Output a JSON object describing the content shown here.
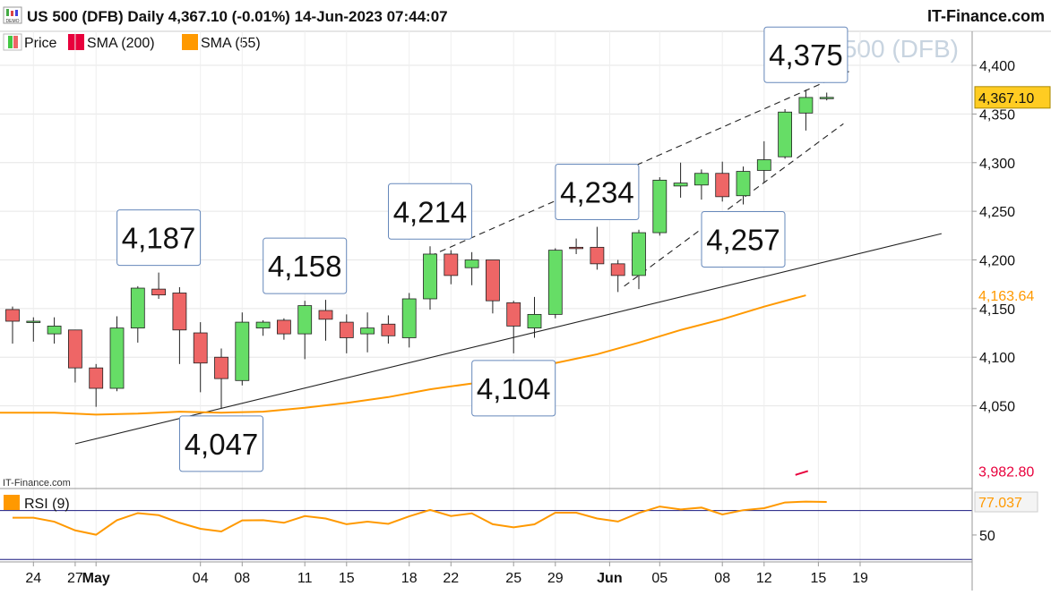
{
  "header": {
    "title": "US 500 (DFB) Daily 4,367.10 (-0.01%) 14-Jun-2023 07:44:07",
    "brand": "IT-Finance.com",
    "watermark": "US 500 (DFB)",
    "source_label": "IT-Finance.com"
  },
  "legend": [
    {
      "label": "Price",
      "color": "#44c844"
    },
    {
      "label": "SMA (200)",
      "color": "#e8003c"
    },
    {
      "label": "SMA (55)",
      "color": "#ff9900"
    }
  ],
  "rsi_legend": {
    "label": "RSI (9)",
    "color": "#ff9900"
  },
  "colors": {
    "up": "#66dd66",
    "down": "#ee6666",
    "sma55": "#ff9900",
    "sma200": "#e8003c",
    "rsi": "#ff9900",
    "rsi_band": "#1a1a80"
  },
  "chart_data": [
    {
      "type": "candlestick",
      "title": "US 500 (DFB) Daily",
      "ylim": [
        3965,
        4435
      ],
      "y_ticks": [
        4050,
        4100,
        4150,
        4200,
        4250,
        4300,
        4350,
        4400
      ],
      "y_tick_labels": [
        "4,050",
        "4,100",
        "4,150",
        "4,200",
        "4,250",
        "4,300",
        "4,350",
        "4,400"
      ],
      "x_axis_labels": [
        {
          "index": 1,
          "label": "24"
        },
        {
          "index": 3,
          "label": "27"
        },
        {
          "index": 4,
          "label": "May",
          "bold": true
        },
        {
          "index": 9,
          "label": "04"
        },
        {
          "index": 11,
          "label": "08"
        },
        {
          "index": 14,
          "label": "11"
        },
        {
          "index": 16,
          "label": "15"
        },
        {
          "index": 19,
          "label": "18"
        },
        {
          "index": 21,
          "label": "22"
        },
        {
          "index": 24,
          "label": "25"
        },
        {
          "index": 26,
          "label": "29"
        },
        {
          "index": 28.6,
          "label": "Jun",
          "bold": true
        },
        {
          "index": 31,
          "label": "05"
        },
        {
          "index": 34,
          "label": "08"
        },
        {
          "index": 36,
          "label": "12"
        },
        {
          "index": 38.6,
          "label": "15"
        },
        {
          "index": 40.6,
          "label": "19"
        }
      ],
      "candles": [
        {
          "o": 4149,
          "h": 4152,
          "l": 4114,
          "c": 4137
        },
        {
          "o": 4137,
          "h": 4141,
          "l": 4116,
          "c": 4137
        },
        {
          "o": 4124,
          "h": 4141,
          "l": 4114,
          "c": 4132
        },
        {
          "o": 4128,
          "h": 4128,
          "l": 4074,
          "c": 4089
        },
        {
          "o": 4089,
          "h": 4093,
          "l": 4049,
          "c": 4068
        },
        {
          "o": 4068,
          "h": 4142,
          "l": 4065,
          "c": 4130
        },
        {
          "o": 4130,
          "h": 4173,
          "l": 4115,
          "c": 4171
        },
        {
          "o": 4170,
          "h": 4187,
          "l": 4160,
          "c": 4164
        },
        {
          "o": 4166,
          "h": 4172,
          "l": 4093,
          "c": 4128
        },
        {
          "o": 4125,
          "h": 4136,
          "l": 4064,
          "c": 4094
        },
        {
          "o": 4100,
          "h": 4109,
          "l": 4047,
          "c": 4078
        },
        {
          "o": 4076,
          "h": 4146,
          "l": 4071,
          "c": 4136
        },
        {
          "o": 4130,
          "h": 4138,
          "l": 4122,
          "c": 4136
        },
        {
          "o": 4138,
          "h": 4140,
          "l": 4118,
          "c": 4124
        },
        {
          "o": 4124,
          "h": 4158,
          "l": 4098,
          "c": 4153
        },
        {
          "o": 4148,
          "h": 4159,
          "l": 4117,
          "c": 4139
        },
        {
          "o": 4136,
          "h": 4144,
          "l": 4104,
          "c": 4120
        },
        {
          "o": 4124,
          "h": 4146,
          "l": 4105,
          "c": 4130
        },
        {
          "o": 4134,
          "h": 4143,
          "l": 4114,
          "c": 4122
        },
        {
          "o": 4120,
          "h": 4166,
          "l": 4110,
          "c": 4160
        },
        {
          "o": 4160,
          "h": 4214,
          "l": 4149,
          "c": 4206
        },
        {
          "o": 4206,
          "h": 4210,
          "l": 4175,
          "c": 4184
        },
        {
          "o": 4192,
          "h": 4208,
          "l": 4174,
          "c": 4200
        },
        {
          "o": 4200,
          "h": 4200,
          "l": 4145,
          "c": 4158
        },
        {
          "o": 4156,
          "h": 4158,
          "l": 4104,
          "c": 4132
        },
        {
          "o": 4130,
          "h": 4162,
          "l": 4120,
          "c": 4144
        },
        {
          "o": 4144,
          "h": 4212,
          "l": 4140,
          "c": 4210
        },
        {
          "o": 4213,
          "h": 4222,
          "l": 4206,
          "c": 4212
        },
        {
          "o": 4213,
          "h": 4234,
          "l": 4190,
          "c": 4196
        },
        {
          "o": 4196,
          "h": 4200,
          "l": 4167,
          "c": 4184
        },
        {
          "o": 4184,
          "h": 4231,
          "l": 4170,
          "c": 4228
        },
        {
          "o": 4228,
          "h": 4285,
          "l": 4225,
          "c": 4282
        },
        {
          "o": 4276,
          "h": 4300,
          "l": 4264,
          "c": 4279
        },
        {
          "o": 4277,
          "h": 4293,
          "l": 4262,
          "c": 4289
        },
        {
          "o": 4289,
          "h": 4301,
          "l": 4260,
          "c": 4265
        },
        {
          "o": 4266,
          "h": 4296,
          "l": 4257,
          "c": 4291
        },
        {
          "o": 4292,
          "h": 4322,
          "l": 4279,
          "c": 4303
        },
        {
          "o": 4306,
          "h": 4355,
          "l": 4304,
          "c": 4352
        },
        {
          "o": 4351,
          "h": 4375,
          "l": 4333,
          "c": 4367
        },
        {
          "o": 4367,
          "h": 4372,
          "l": 4364,
          "c": 4367.1
        }
      ],
      "sma55": [
        {
          "index": -1,
          "value": 4043
        },
        {
          "index": 2,
          "value": 4043
        },
        {
          "index": 4,
          "value": 4041
        },
        {
          "index": 6,
          "value": 4042
        },
        {
          "index": 8,
          "value": 4044
        },
        {
          "index": 10,
          "value": 4043
        },
        {
          "index": 12,
          "value": 4044
        },
        {
          "index": 14,
          "value": 4048
        },
        {
          "index": 16,
          "value": 4053
        },
        {
          "index": 18,
          "value": 4059
        },
        {
          "index": 20,
          "value": 4067
        },
        {
          "index": 22,
          "value": 4073
        },
        {
          "index": 24,
          "value": 4083
        },
        {
          "index": 26,
          "value": 4094
        },
        {
          "index": 28,
          "value": 4103
        },
        {
          "index": 30,
          "value": 4115
        },
        {
          "index": 32,
          "value": 4128
        },
        {
          "index": 34,
          "value": 4139
        },
        {
          "index": 36,
          "value": 4152
        },
        {
          "index": 38,
          "value": 4163.64
        }
      ],
      "sma200_value": 3982.8,
      "sma200_points": [
        {
          "index": 37.5,
          "value": 3979
        },
        {
          "index": 38.1,
          "value": 3983
        }
      ],
      "trendlines": [
        {
          "style": "solid",
          "p1": {
            "index": 3,
            "value": 4011
          },
          "p2": {
            "index": 44.5,
            "value": 4227
          }
        },
        {
          "style": "dashed",
          "p1": {
            "index": 20,
            "value": 4204
          },
          "p2": {
            "index": 40.2,
            "value": 4395
          }
        },
        {
          "style": "dashed",
          "p1": {
            "index": 29.3,
            "value": 4173
          },
          "p2": {
            "index": 39.8,
            "value": 4340
          }
        }
      ],
      "annotations": [
        {
          "text": "4,187",
          "index": 7,
          "value": 4187,
          "pos": "above"
        },
        {
          "text": "4,047",
          "index": 10,
          "value": 4047,
          "pos": "below"
        },
        {
          "text": "4,158",
          "index": 14,
          "value": 4158,
          "pos": "above"
        },
        {
          "text": "4,214",
          "index": 20,
          "value": 4214,
          "pos": "above"
        },
        {
          "text": "4,104",
          "index": 24,
          "value": 4104,
          "pos": "below"
        },
        {
          "text": "4,234",
          "index": 28,
          "value": 4234,
          "pos": "above"
        },
        {
          "text": "4,257",
          "index": 35,
          "value": 4257,
          "pos": "below"
        },
        {
          "text": "4,375",
          "index": 38,
          "value": 4375,
          "pos": "above"
        }
      ],
      "price_labels": [
        {
          "text": "4,367.10",
          "value": 4367.1,
          "style": "current"
        },
        {
          "text": "4,163.64",
          "value": 4163.64,
          "style": "sma55"
        },
        {
          "text": "3,982.80",
          "value": 3982.8,
          "style": "sma200"
        }
      ]
    },
    {
      "type": "line",
      "title": "RSI (9)",
      "ylim": [
        28,
        88
      ],
      "y_ticks": [
        50
      ],
      "y_tick_labels": [
        "50"
      ],
      "bands": [
        70,
        30
      ],
      "current_label": "77.037",
      "values": [
        64.1,
        64.1,
        60.9,
        53.8,
        50.2,
        62.1,
        67.9,
        66.2,
        60.0,
        55.1,
        52.9,
        61.9,
        62.1,
        60.0,
        65.5,
        63.5,
        58.8,
        60.9,
        59.1,
        65.3,
        70.5,
        65.5,
        67.7,
        58.8,
        56.3,
        58.7,
        68.2,
        68.2,
        63.5,
        61.0,
        68.0,
        73.3,
        70.9,
        72.4,
        66.8,
        70.3,
        71.9,
        76.6,
        77.3,
        77.037
      ]
    }
  ]
}
